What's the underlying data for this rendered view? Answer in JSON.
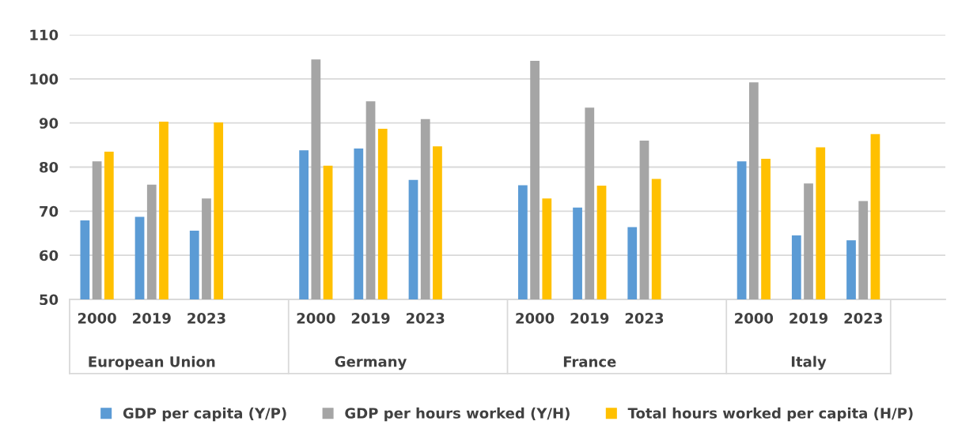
{
  "chart_data": {
    "type": "bar",
    "categories": [
      "2000",
      "2019",
      "2023",
      null,
      "2000",
      "2019",
      "2023",
      null,
      "2000",
      "2019",
      "2023",
      null,
      "2000",
      "2019",
      "2023",
      null
    ],
    "series": [
      {
        "name": "GDP per capita (Y/P)",
        "color": "#5b9bd5",
        "values": [
          67.9,
          68.7,
          65.6,
          null,
          83.8,
          84.2,
          77.1,
          null,
          75.9,
          70.8,
          66.4,
          null,
          81.3,
          64.5,
          63.4,
          null
        ]
      },
      {
        "name": "GDP per hours worked (Y/H)",
        "color": "#a5a5a5",
        "values": [
          81.3,
          76.0,
          72.9,
          null,
          104.4,
          94.9,
          90.9,
          null,
          104.1,
          93.5,
          86.0,
          null,
          99.2,
          76.3,
          72.3,
          null
        ]
      },
      {
        "name": "Total hours worked per capita (H/P)",
        "color": "#ffc000",
        "values": [
          83.5,
          90.3,
          90.1,
          null,
          80.3,
          88.7,
          84.7,
          null,
          72.9,
          75.8,
          77.3,
          null,
          81.9,
          84.5,
          87.5,
          null
        ]
      }
    ],
    "annotations": [
      "European Union",
      "Germany",
      "France",
      "Italy"
    ],
    "ylim": [
      50,
      110
    ],
    "yticks": [
      50,
      60,
      70,
      80,
      90,
      100,
      110
    ],
    "grid": "y",
    "legend": "bottom"
  }
}
